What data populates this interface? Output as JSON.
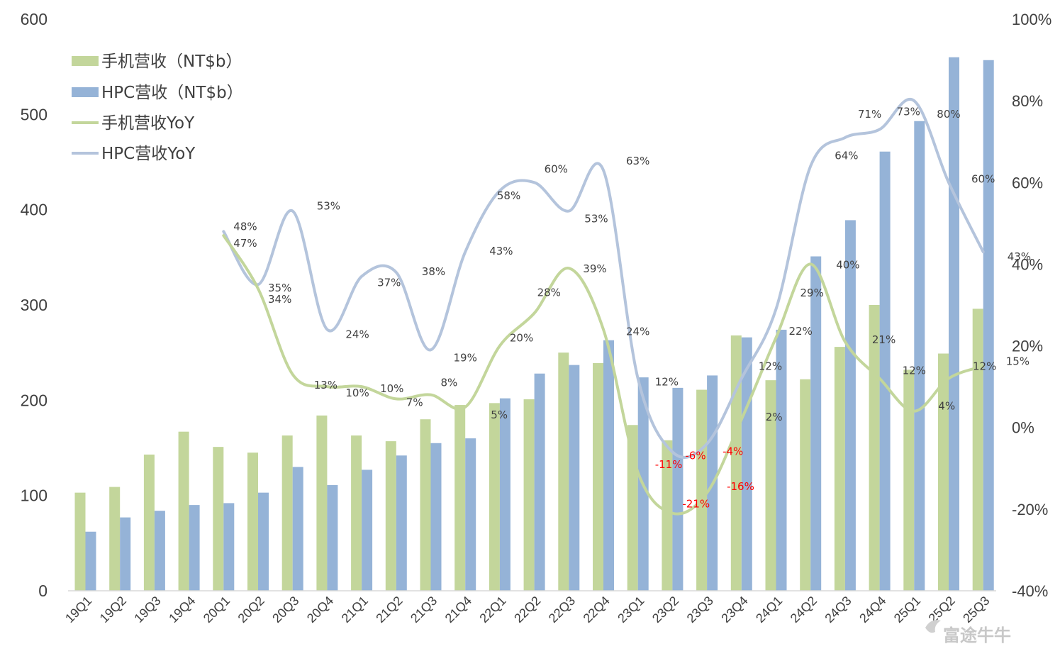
{
  "chart_data": {
    "type": "bar",
    "categories": [
      "19Q1",
      "19Q2",
      "19Q3",
      "19Q4",
      "20Q1",
      "20Q2",
      "20Q3",
      "20Q4",
      "21Q1",
      "21Q2",
      "21Q3",
      "21Q4",
      "22Q1",
      "22Q2",
      "22Q3",
      "22Q4",
      "23Q1",
      "23Q2",
      "23Q3",
      "23Q4",
      "24Q1",
      "24Q2",
      "24Q3",
      "24Q4",
      "25Q1",
      "25Q2",
      "25Q3"
    ],
    "left_axis": {
      "ylim": [
        0,
        600
      ],
      "ticks": [
        "0",
        "100",
        "200",
        "300",
        "400",
        "500",
        "600"
      ]
    },
    "right_axis": {
      "ylim": [
        -40,
        100
      ],
      "ticks": [
        "-40%",
        "-20%",
        "0%",
        "20%",
        "40%",
        "60%",
        "80%",
        "100%"
      ]
    },
    "series": [
      {
        "name": "手机营收（NT$b）",
        "type": "bar",
        "axis": "left",
        "color": "#c3d69b",
        "values": [
          103,
          109,
          143,
          167,
          151,
          145,
          163,
          184,
          163,
          157,
          180,
          195,
          197,
          201,
          250,
          239,
          174,
          158,
          211,
          268,
          221,
          222,
          256,
          300,
          232,
          249,
          296
        ]
      },
      {
        "name": "HPC营收（NT$b）",
        "type": "bar",
        "axis": "left",
        "color": "#95b3d7",
        "values": [
          62,
          77,
          84,
          90,
          92,
          103,
          130,
          111,
          127,
          142,
          155,
          160,
          202,
          228,
          237,
          263,
          224,
          213,
          226,
          266,
          274,
          351,
          389,
          461,
          493,
          560,
          557
        ]
      },
      {
        "name": "手机营收YoY",
        "type": "line",
        "axis": "right",
        "color": "#c3d69b",
        "values": [
          null,
          null,
          null,
          null,
          47,
          34,
          13,
          10,
          10,
          7,
          8,
          5,
          20,
          28,
          39,
          24,
          -11,
          -21,
          -16,
          2,
          22,
          40,
          21,
          12,
          4,
          12,
          15
        ],
        "labels": [
          null,
          null,
          null,
          null,
          "47%",
          "34%",
          "13%",
          "10%",
          "10%",
          "7%",
          "8%",
          "5%",
          "20%",
          "28%",
          "39%",
          "24%",
          "-11%",
          "-21%",
          "-16%",
          "2%",
          "22%",
          "40%",
          "21%",
          "12%",
          "4%",
          "12%",
          "15%"
        ]
      },
      {
        "name": "HPC营收YoY",
        "type": "line",
        "axis": "right",
        "color": "#b4c4dc",
        "values": [
          null,
          null,
          null,
          null,
          48,
          35,
          53,
          24,
          37,
          38,
          19,
          43,
          58,
          60,
          53,
          63,
          12,
          -6,
          -4,
          12,
          29,
          64,
          71,
          73,
          80,
          60,
          43
        ],
        "labels": [
          null,
          null,
          null,
          null,
          "48%",
          "35%",
          "53%",
          "24%",
          "37%",
          "38%",
          "19%",
          "43%",
          "58%",
          "60%",
          "53%",
          "63%",
          "12%",
          "-6%",
          "-4%",
          "12%",
          "29%",
          "64%",
          "71%",
          "73%",
          "80%",
          "60%",
          "43%"
        ]
      }
    ],
    "negative_label_color": "#ff0000",
    "legend": "top-left",
    "grid": false
  },
  "watermark": "富途牛牛"
}
